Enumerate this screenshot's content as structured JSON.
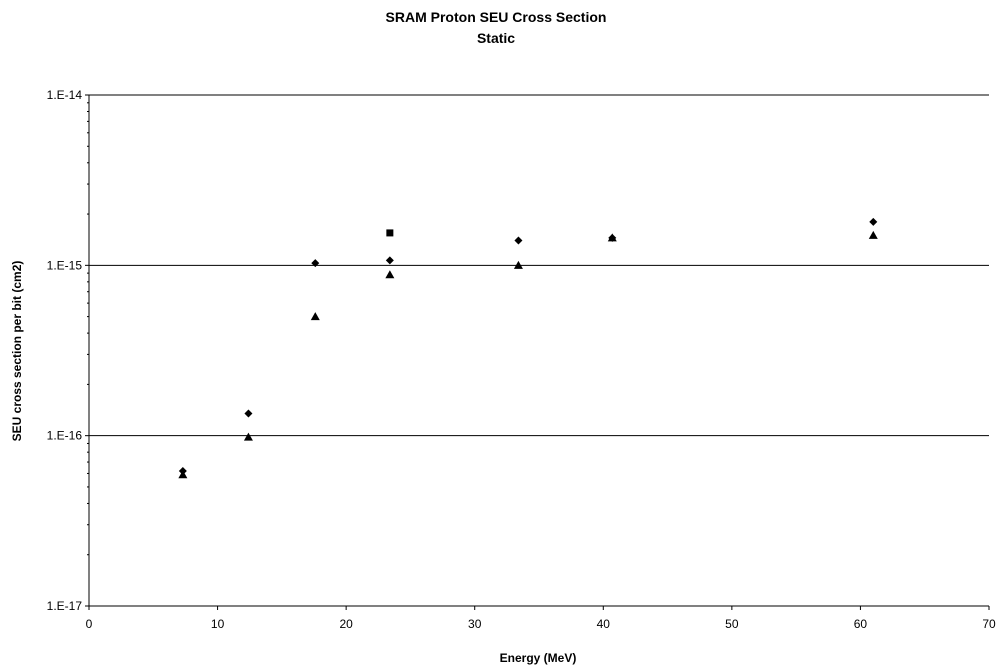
{
  "chart_data": {
    "type": "scatter",
    "title": "SRAM Proton SEU Cross Section",
    "subtitle": "Static",
    "xlabel": "Energy (MeV)",
    "ylabel": "SEU cross section per bit (cm2)",
    "xlim": [
      0,
      70
    ],
    "ylim": [
      1e-17,
      1e-14
    ],
    "yscale": "log",
    "x_ticks": [
      "0",
      "10",
      "20",
      "30",
      "40",
      "50",
      "60",
      "70"
    ],
    "y_ticks": [
      "1.E-17",
      "1.E-16",
      "1.E-15",
      "1.E-14"
    ],
    "grid": "horizontal major lines",
    "legend": "none",
    "series": [
      {
        "marker": "diamond",
        "color": "#000000",
        "points": [
          {
            "x": 7.3,
            "y": 6.2e-17
          },
          {
            "x": 12.4,
            "y": 1.35e-16
          },
          {
            "x": 17.6,
            "y": 1.03e-15
          },
          {
            "x": 23.4,
            "y": 1.07e-15
          },
          {
            "x": 33.4,
            "y": 1.4e-15
          },
          {
            "x": 40.7,
            "y": 1.45e-15
          },
          {
            "x": 61.0,
            "y": 1.8e-15
          }
        ]
      },
      {
        "marker": "triangle",
        "color": "#000000",
        "points": [
          {
            "x": 7.3,
            "y": 5.9e-17
          },
          {
            "x": 12.4,
            "y": 9.8e-17
          },
          {
            "x": 17.6,
            "y": 5e-16
          },
          {
            "x": 23.4,
            "y": 8.8e-16
          },
          {
            "x": 33.4,
            "y": 1e-15
          },
          {
            "x": 40.7,
            "y": 1.45e-15
          },
          {
            "x": 61.0,
            "y": 1.5e-15
          }
        ]
      },
      {
        "marker": "square",
        "color": "#000000",
        "points": [
          {
            "x": 23.4,
            "y": 1.55e-15
          }
        ]
      }
    ]
  }
}
